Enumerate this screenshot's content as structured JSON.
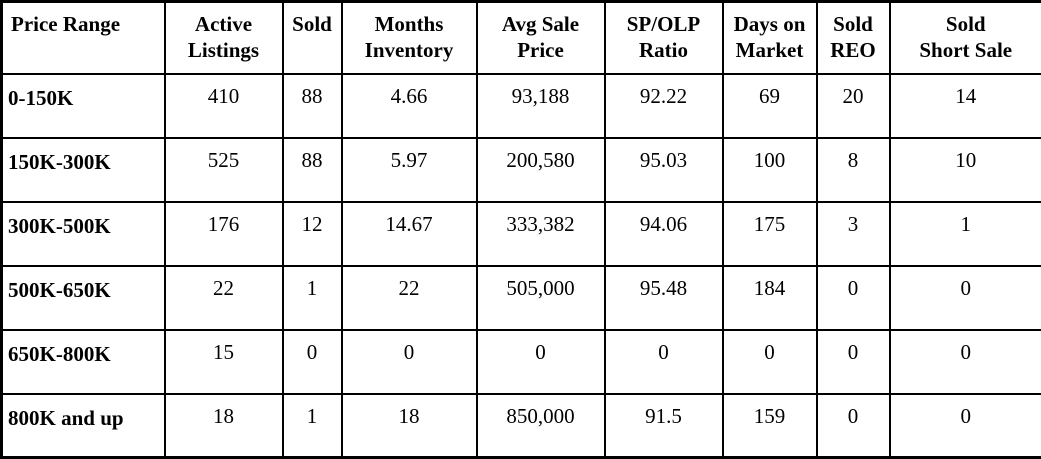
{
  "table": {
    "headers": [
      {
        "line1": "Price Range",
        "line2": ""
      },
      {
        "line1": "Active",
        "line2": "Listings"
      },
      {
        "line1": "Sold",
        "line2": ""
      },
      {
        "line1": "Months",
        "line2": "Inventory"
      },
      {
        "line1": "Avg Sale",
        "line2": "Price"
      },
      {
        "line1": "SP/OLP",
        "line2": "Ratio"
      },
      {
        "line1": "Days on",
        "line2": "Market"
      },
      {
        "line1": "Sold",
        "line2": "REO"
      },
      {
        "line1": "Sold",
        "line2": "Short Sale"
      }
    ],
    "rows": [
      [
        "0-150K",
        "410",
        "88",
        "4.66",
        "93,188",
        "92.22",
        "69",
        "20",
        "14"
      ],
      [
        "150K-300K",
        "525",
        "88",
        "5.97",
        "200,580",
        "95.03",
        "100",
        "8",
        "10"
      ],
      [
        "300K-500K",
        "176",
        "12",
        "14.67",
        "333,382",
        "94.06",
        "175",
        "3",
        "1"
      ],
      [
        "500K-650K",
        "22",
        "1",
        "22",
        "505,000",
        "95.48",
        "184",
        "0",
        "0"
      ],
      [
        "650K-800K",
        "15",
        "0",
        "0",
        "0",
        "0",
        "0",
        "0",
        "0"
      ],
      [
        "800K and up",
        "18",
        "1",
        "18",
        "850,000",
        "91.5",
        "159",
        "0",
        "0"
      ]
    ]
  }
}
